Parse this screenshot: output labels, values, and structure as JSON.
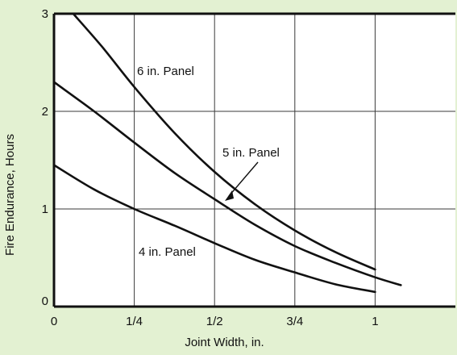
{
  "chart_data": {
    "type": "line",
    "title": "",
    "xlabel": "Joint Width, in.",
    "ylabel": "Fire Endurance, Hours",
    "xlim": [
      0,
      1.25
    ],
    "ylim": [
      0,
      3
    ],
    "grid": true,
    "x_ticks": [
      {
        "value": 0,
        "label": "0"
      },
      {
        "value": 0.25,
        "label": "1/4"
      },
      {
        "value": 0.5,
        "label": "1/2"
      },
      {
        "value": 0.75,
        "label": "3/4"
      },
      {
        "value": 1,
        "label": "1"
      }
    ],
    "y_ticks": [
      {
        "value": 0,
        "label": "0"
      },
      {
        "value": 1,
        "label": "1"
      },
      {
        "value": 2,
        "label": "2"
      },
      {
        "value": 3,
        "label": "3"
      }
    ],
    "series": [
      {
        "name": "6 in. Panel",
        "x": [
          0.06,
          0.15,
          0.25,
          0.375,
          0.5,
          0.625,
          0.75,
          0.875,
          1.0
        ],
        "y": [
          3.0,
          2.66,
          2.25,
          1.78,
          1.38,
          1.05,
          0.78,
          0.56,
          0.38
        ]
      },
      {
        "name": "5 in. Panel",
        "x": [
          0.0,
          0.125,
          0.25,
          0.375,
          0.5,
          0.625,
          0.75,
          0.875,
          1.0,
          1.08
        ],
        "y": [
          2.3,
          2.0,
          1.68,
          1.37,
          1.1,
          0.84,
          0.62,
          0.45,
          0.3,
          0.22
        ]
      },
      {
        "name": "4 in. Panel",
        "x": [
          0.0,
          0.125,
          0.25,
          0.375,
          0.5,
          0.625,
          0.75,
          0.875,
          1.0
        ],
        "y": [
          1.45,
          1.2,
          1.0,
          0.83,
          0.65,
          0.48,
          0.35,
          0.23,
          0.15
        ]
      }
    ]
  }
}
